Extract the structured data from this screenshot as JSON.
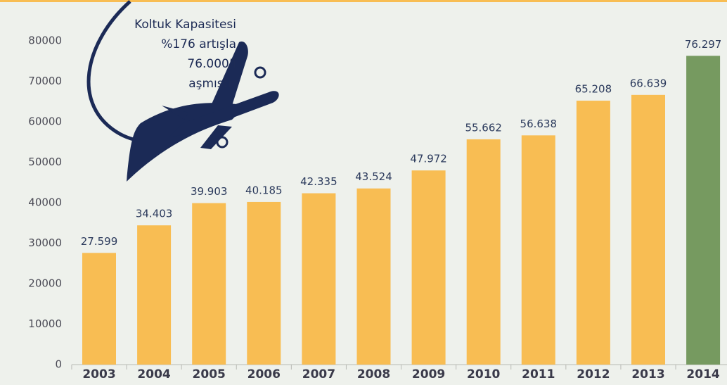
{
  "chart_data": {
    "type": "bar",
    "categories": [
      "2003",
      "2004",
      "2005",
      "2006",
      "2007",
      "2008",
      "2009",
      "2010",
      "2011",
      "2012",
      "2013",
      "2014"
    ],
    "values": [
      27599,
      34403,
      39903,
      40185,
      42335,
      43524,
      47972,
      55662,
      56638,
      65208,
      66639,
      76297
    ],
    "value_labels": [
      "27.599",
      "34.403",
      "39.903",
      "40.185",
      "42.335",
      "43.524",
      "47.972",
      "55.662",
      "56.638",
      "65.208",
      "66.639",
      "76.297"
    ],
    "colors": [
      "#f8bd53",
      "#f8bd53",
      "#f8bd53",
      "#f8bd53",
      "#f8bd53",
      "#f8bd53",
      "#f8bd53",
      "#f8bd53",
      "#f8bd53",
      "#f8bd53",
      "#f8bd53",
      "#769a60"
    ],
    "ylim": [
      0,
      80000
    ],
    "yticks": [
      0,
      10000,
      20000,
      30000,
      40000,
      50000,
      60000,
      70000,
      80000
    ],
    "grid": false,
    "annotation": [
      "Koltuk Kapasitesi",
      "%176 artışla",
      "76.000’i",
      "aşmıştır"
    ]
  }
}
